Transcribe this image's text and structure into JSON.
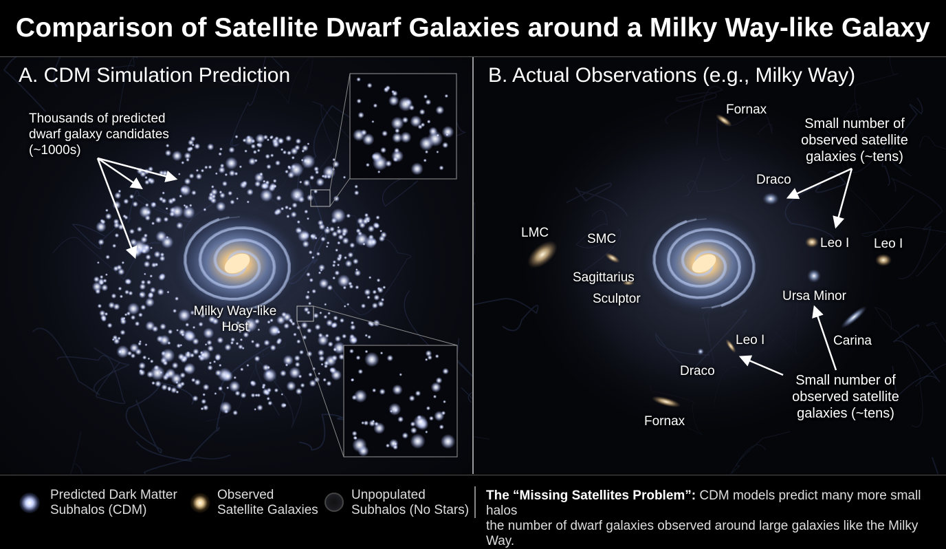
{
  "title": "Comparison of Satellite Dwarf Galaxies around a Milky Way-like Galaxy",
  "panel_a": {
    "heading": "A. CDM Simulation Prediction",
    "annotation_lines": [
      "Thousands of predicted",
      "dwarf galaxy candidates",
      "(~1000s)"
    ],
    "host_lines": [
      "Milky Way-like",
      "Host"
    ]
  },
  "panel_b": {
    "heading": "B. Actual Observations (e.g., Milky Way)",
    "labels": {
      "fornax_top": "Fornax",
      "draco_top": "Draco",
      "lmc": "LMC",
      "smc": "SMC",
      "sagittarius": "Sagittarius",
      "sculptor": "Sculptor",
      "leo_i_inner": "Leo I",
      "leo_i_outer": "Leo I",
      "ursa_minor": "Ursa Minor",
      "carina": "Carina",
      "leo_i_lower": "Leo I",
      "draco_lower": "Draco",
      "fornax_lower": "Fornax"
    },
    "note_top_lines": [
      "Small number of",
      "observed satellite",
      "galaxies (~tens)"
    ],
    "note_bottom_lines": [
      "Small number of",
      "observed satellite",
      "galaxies (~tens)"
    ]
  },
  "legend": {
    "item1_lines": [
      "Predicted Dark Matter",
      "Subhalos (CDM)"
    ],
    "item2_lines": [
      "Observed",
      "Satellite Galaxies"
    ],
    "item3_lines": [
      "Unpopulated",
      "Subhalos (No Stars)"
    ],
    "problem_bold": "The “Missing Satellites Problem”:",
    "problem_rest": " CDM models predict many more small halos",
    "problem_line2": "the number of dwarf galaxies observed around large galaxies like the Milky Way."
  },
  "colors": {
    "background": "#000000",
    "subhalo": "#dfe6ff",
    "observed": "#f3dcae",
    "galaxy_core": "#ffe0a0",
    "galaxy_arm": "#9fb5e8"
  }
}
